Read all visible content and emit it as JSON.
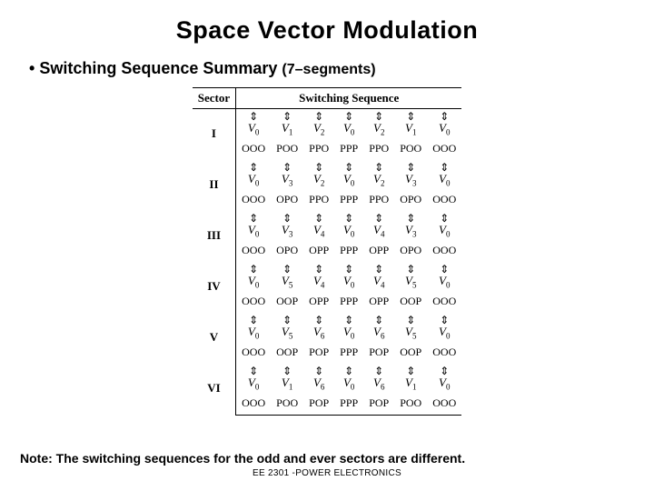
{
  "title": "Space Vector Modulation",
  "subtitle_bullet": "•",
  "subtitle": "Switching Sequence Summary",
  "subtitle_suffix": "(7–segments)",
  "headers": {
    "sector": "Sector",
    "sequence": "Switching Sequence"
  },
  "arrow_glyph": "⇕",
  "rows": [
    {
      "sector": "I",
      "vr": [
        "V₀",
        "V₁",
        "V₂",
        "V₀",
        "V₂",
        "V₁",
        "V₀"
      ],
      "ooo": [
        "OOO",
        "POO",
        "PPO",
        "PPP",
        "PPO",
        "POO",
        "OOO"
      ]
    },
    {
      "sector": "II",
      "vr": [
        "V₀",
        "V₃",
        "V₂",
        "V₀",
        "V₂",
        "V₃",
        "V₀"
      ],
      "ooo": [
        "OOO",
        "OPO",
        "PPO",
        "PPP",
        "PPO",
        "OPO",
        "OOO"
      ]
    },
    {
      "sector": "III",
      "vr": [
        "V₀",
        "V₃",
        "V₄",
        "V₀",
        "V₄",
        "V₃",
        "V₀"
      ],
      "ooo": [
        "OOO",
        "OPO",
        "OPP",
        "PPP",
        "OPP",
        "OPO",
        "OOO"
      ]
    },
    {
      "sector": "IV",
      "vr": [
        "V₀",
        "V₅",
        "V₄",
        "V₀",
        "V₄",
        "V₅",
        "V₀"
      ],
      "ooo": [
        "OOO",
        "OOP",
        "OPP",
        "PPP",
        "OPP",
        "OOP",
        "OOO"
      ]
    },
    {
      "sector": "V",
      "vr": [
        "V₀",
        "V₅",
        "V₆",
        "V₀",
        "V₆",
        "V₅",
        "V₀"
      ],
      "ooo": [
        "OOO",
        "OOP",
        "POP",
        "PPP",
        "POP",
        "OOP",
        "OOO"
      ]
    },
    {
      "sector": "VI",
      "vr": [
        "V₀",
        "V₁",
        "V₆",
        "V₀",
        "V₆",
        "V₁",
        "V₀"
      ],
      "ooo": [
        "OOO",
        "POO",
        "POP",
        "PPP",
        "POP",
        "POO",
        "OOO"
      ]
    }
  ],
  "note": "Note:  The switching sequences for the odd and ever sectors are different.",
  "footer": "EE 2301 -POWER ELECTRONICS"
}
